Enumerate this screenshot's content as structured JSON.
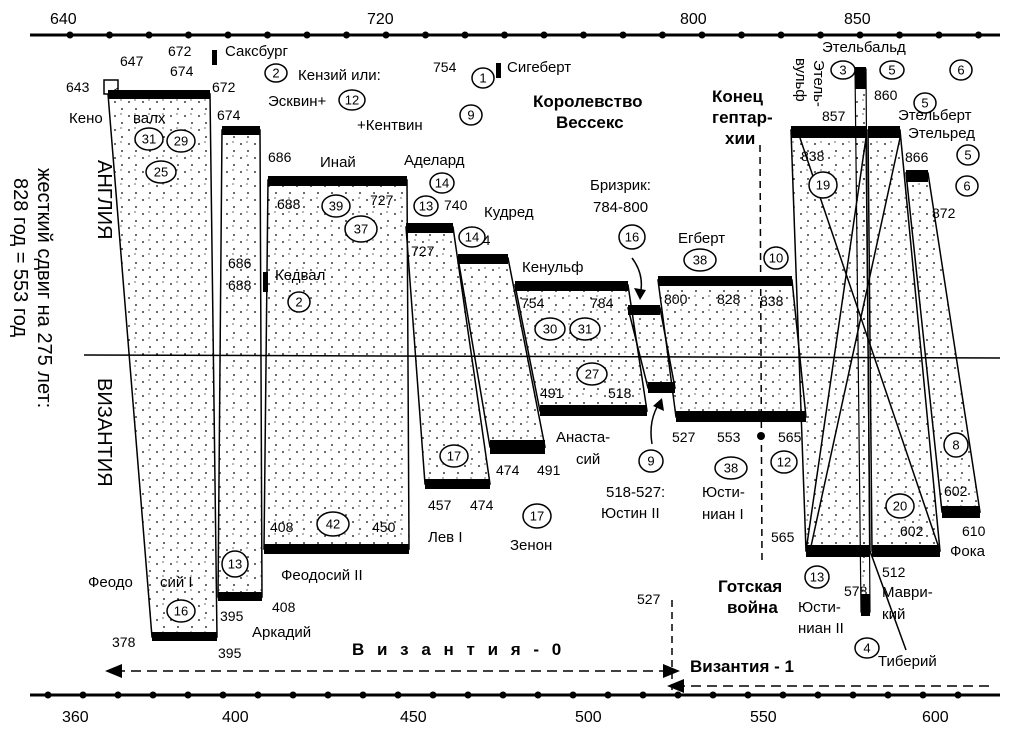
{
  "axis_top": {
    "ticks": [
      "640",
      "720",
      "800",
      "850"
    ]
  },
  "axis_bottom": {
    "ticks": [
      "360",
      "400",
      "450",
      "500",
      "550",
      "600"
    ]
  },
  "side_labels": {
    "england": "АНГЛИЯ",
    "byzantium": "ВИЗАНТИЯ",
    "shift_line1": "жесткий сдвиг на 275 лет:",
    "shift_line2": "828 год = 553 год"
  },
  "titles": {
    "wessex_1": "Королевство",
    "wessex_2": "Вессекс",
    "heptarchy_1": "Конец",
    "heptarchy_2": "гептар-",
    "heptarchy_3": "хии",
    "gothic_1": "Готская",
    "gothic_2": "война"
  },
  "separators": {
    "byz0": "В и з а н т и я  -  0",
    "byz1": "Византия - 1"
  },
  "rulers": {
    "keno": "Кено",
    "valh": "валх",
    "saxburg": "Саксбург",
    "kenzi": "Кензий или:",
    "eskvin": "Эсквин+",
    "kentvin": "+Кентвин",
    "sigebert": "Сигеберт",
    "inai": "Инай",
    "adelard": "Аделард",
    "kudred": "Кудред",
    "kedval": "Кедвал",
    "kenulf": "Кенульф",
    "brizrik": "Бризрик:",
    "brizrik_years": "784-800",
    "egbert": "Егберт",
    "etelbald": "Этельбальд",
    "etelvulf_1": "Этель-",
    "etelvulf_2": "вульф",
    "etelbert": "Этельберт",
    "etelred": "Этельред",
    "feodosy1_a": "Феодо",
    "feodosy1_b": "сий I",
    "arkady": "Аркадий",
    "feodosy2": "Феодосий II",
    "lev1": "Лев I",
    "zenon": "Зенон",
    "anastasy_1": "Анаста-",
    "anastasy_2": "сий",
    "justin2_a": "518-527:",
    "justin2_b": "Юстин II",
    "justinian1_a": "Юсти-",
    "justinian1_b": "ниан I",
    "justinian2_a": "Юсти-",
    "justinian2_b": "ниан II",
    "mavriky_1": "Маври-",
    "mavriky_2": "кий",
    "tiberiy": "Тиберий",
    "foka": "Фока"
  },
  "years": {
    "y647": "647",
    "y643": "643",
    "y672a": "672",
    "y674a": "674",
    "y672b": "672",
    "y754a": "754",
    "y674b": "674",
    "y686a": "686",
    "y688a": "688",
    "y727a": "727",
    "y740": "740",
    "y754b": "754",
    "y727b": "727",
    "y686b": "686",
    "y688b": "688",
    "y754c": "754",
    "y784": "784",
    "y800": "800",
    "y828": "828",
    "y838a": "838",
    "y838b": "838",
    "y857": "857",
    "y860": "860",
    "y866": "866",
    "y872": "872",
    "y491a": "491",
    "y518": "518",
    "y527a": "527",
    "y553": "553",
    "y565a": "565",
    "y474a": "474",
    "y491b": "491",
    "y457": "457",
    "y474b": "474",
    "y408a": "408",
    "y450": "450",
    "y395a": "395",
    "y408b": "408",
    "y378": "378",
    "y395b": "395",
    "y527b": "527",
    "y565b": "565",
    "y578": "578",
    "y512": "512",
    "y602a": "602",
    "y602b": "602",
    "y610": "610"
  },
  "badges": {
    "b2a": "2",
    "b12a": "12",
    "b1": "1",
    "b9a": "9",
    "b31a": "31",
    "b29": "29",
    "b25": "25",
    "b39": "39",
    "b37": "37",
    "b14a": "14",
    "b13a": "13",
    "b14b": "14",
    "b2b": "2",
    "b16a": "16",
    "b38a": "38",
    "b10": "10",
    "b30": "30",
    "b31b": "31",
    "b27": "27",
    "b17a": "17",
    "b17b": "17",
    "b42": "42",
    "b9b": "9",
    "b38b": "38",
    "b12b": "12",
    "b13b": "13",
    "b16b": "16",
    "b3": "3",
    "b5a": "5",
    "b6a": "6",
    "b5b": "5",
    "b5c": "5",
    "b6b": "6",
    "b19": "19",
    "b8": "8",
    "b20": "20",
    "b13c": "13",
    "b4": "4"
  }
}
